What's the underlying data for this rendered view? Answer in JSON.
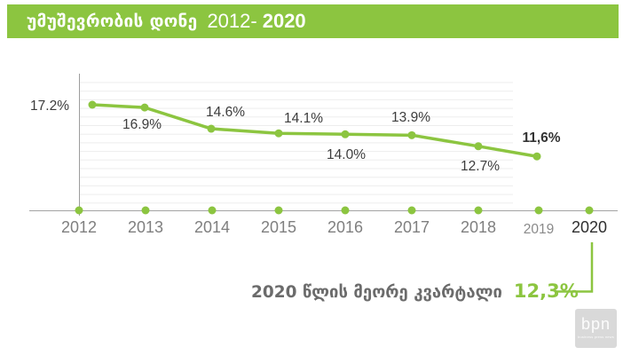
{
  "header": {
    "title_georgian": "უმუშევრობის დონე",
    "title_range_start": "2012-",
    "title_range_end": "2020",
    "banner_color": "#8CC540"
  },
  "chart_data": {
    "type": "line",
    "title": "უმუშევრობის დონე 2012-2020",
    "categories": [
      "2012",
      "2013",
      "2014",
      "2015",
      "2016",
      "2017",
      "2018",
      "2019",
      "2020"
    ],
    "series": [
      {
        "name": "უმუშევრობის დონე",
        "values": [
          17.2,
          16.9,
          14.6,
          14.1,
          14.0,
          13.9,
          12.7,
          11.6
        ]
      }
    ],
    "point_labels": [
      "17.2%",
      "16.9%",
      "14.6%",
      "14.1%",
      "14.0%",
      "13.9%",
      "12.7%",
      "11,6%"
    ],
    "line_color": "#8CC540",
    "marker_color": "#8CC540",
    "axis_color": "#a3a3a3",
    "grid": true,
    "gridline_color": "#ededed",
    "legend": false,
    "ylim": [
      5,
      19
    ],
    "annotation": {
      "category": "2020",
      "label": "2020 წლის მეორე კვარტალი",
      "value": 12.3,
      "display": "12,3%",
      "value_color": "#8CC540"
    }
  },
  "logo": {
    "text": "bpn",
    "caption": "business press news"
  }
}
